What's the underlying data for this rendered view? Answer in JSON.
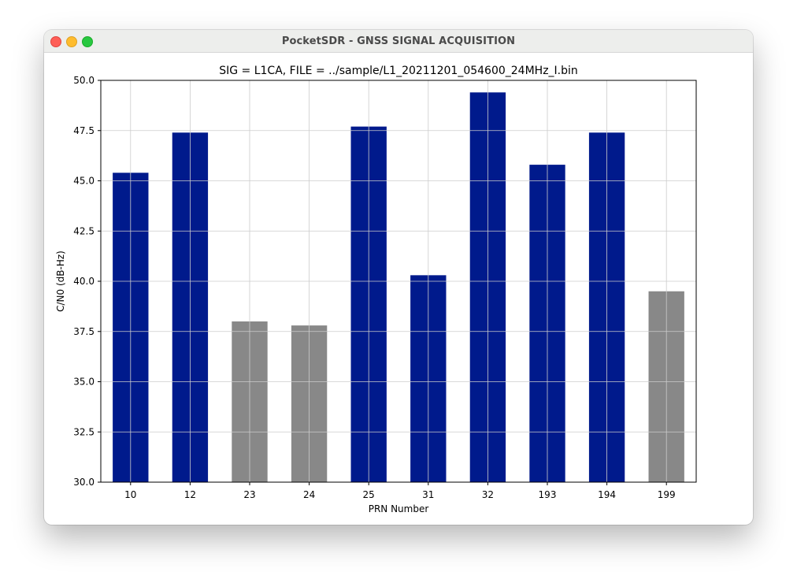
{
  "window": {
    "title": "PocketSDR - GNSS SIGNAL ACQUISITION"
  },
  "colors": {
    "acquired": "#001a8c",
    "not_acquired": "#888888",
    "grid": "#cccccc"
  },
  "chart_data": {
    "type": "bar",
    "title": "SIG = L1CA, FILE = ../sample/L1_20211201_054600_24MHz_I.bin",
    "xlabel": "PRN Number",
    "ylabel": "C/N0 (dB-Hz)",
    "ylim": [
      30.0,
      50.0
    ],
    "yticks": [
      "30.0",
      "32.5",
      "35.0",
      "37.5",
      "40.0",
      "42.5",
      "45.0",
      "47.5",
      "50.0"
    ],
    "grid": true,
    "categories": [
      "10",
      "12",
      "23",
      "24",
      "25",
      "31",
      "32",
      "193",
      "194",
      "199"
    ],
    "values": [
      45.4,
      47.4,
      38.0,
      37.8,
      47.7,
      40.3,
      49.4,
      45.8,
      47.4,
      39.5
    ],
    "acquired": [
      true,
      true,
      false,
      false,
      true,
      true,
      true,
      true,
      true,
      false
    ]
  }
}
